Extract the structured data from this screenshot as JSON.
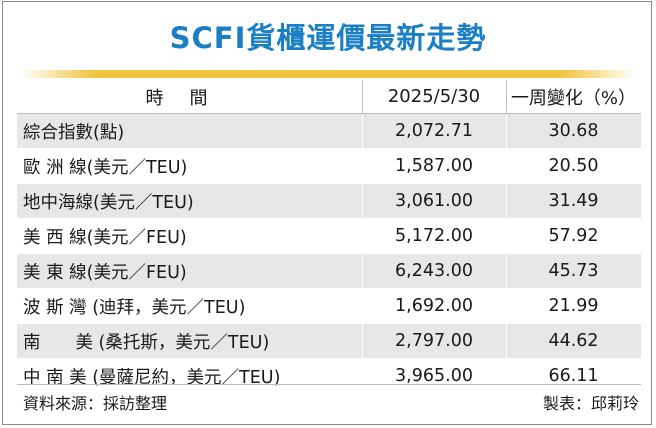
{
  "title": "SCFI貨櫃運價最新走勢",
  "table": {
    "headers": [
      "時間",
      "2025/5/30",
      "一周變化（%）"
    ],
    "rows": [
      {
        "name": "綜合指數(點)",
        "value": "2,072.71",
        "change": "30.68"
      },
      {
        "name": "歐 洲 線(美元／TEU)",
        "value": "1,587.00",
        "change": "20.50"
      },
      {
        "name": "地中海線(美元／TEU)",
        "value": "3,061.00",
        "change": "31.49"
      },
      {
        "name": "美 西 線(美元／FEU)",
        "value": "5,172.00",
        "change": "57.92"
      },
      {
        "name": "美 東 線(美元／FEU)",
        "value": "6,243.00",
        "change": "45.73"
      },
      {
        "name": "波 斯 灣 (迪拜，美元／TEU)",
        "value": "1,692.00",
        "change": "21.99"
      },
      {
        "name": "南　　美 (桑托斯，美元／TEU)",
        "value": "2,797.00",
        "change": "44.62"
      },
      {
        "name": "中 南 美 (曼薩尼約，美元／TEU)",
        "value": "3,965.00",
        "change": "66.11"
      }
    ]
  },
  "footer": {
    "source": "資料來源：採訪整理",
    "credit": "製表：邱莉玲"
  },
  "colors": {
    "title": "#1b7fc6",
    "rule": "#f2c540",
    "stripe": "#e7e7e9"
  }
}
